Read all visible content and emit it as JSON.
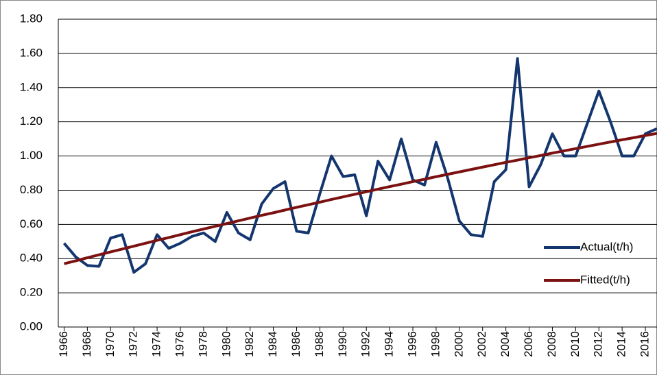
{
  "chart_data": {
    "type": "line",
    "x": [
      1966,
      1967,
      1968,
      1969,
      1970,
      1971,
      1972,
      1973,
      1974,
      1975,
      1976,
      1977,
      1978,
      1979,
      1980,
      1981,
      1982,
      1983,
      1984,
      1985,
      1986,
      1987,
      1988,
      1989,
      1990,
      1991,
      1992,
      1993,
      1994,
      1995,
      1996,
      1997,
      1998,
      1999,
      2000,
      2001,
      2002,
      2003,
      2004,
      2005,
      2006,
      2007,
      2008,
      2009,
      2010,
      2011,
      2012,
      2013,
      2014,
      2015,
      2016,
      2017
    ],
    "series": [
      {
        "name": "Actual(t/h)",
        "color": "#14366e",
        "values": [
          0.49,
          0.41,
          0.36,
          0.355,
          0.52,
          0.54,
          0.32,
          0.37,
          0.54,
          0.46,
          0.49,
          0.53,
          0.55,
          0.5,
          0.67,
          0.55,
          0.51,
          0.72,
          0.81,
          0.85,
          0.56,
          0.55,
          0.78,
          1.0,
          0.88,
          0.89,
          0.65,
          0.97,
          0.86,
          1.1,
          0.86,
          0.83,
          1.08,
          0.87,
          0.62,
          0.54,
          0.53,
          0.85,
          0.92,
          1.57,
          0.82,
          0.95,
          1.13,
          1.0,
          1.0,
          1.19,
          1.38,
          1.2,
          1.0,
          1.0,
          1.13,
          1.16
        ]
      },
      {
        "name": "Fitted(t/h)",
        "color": "#7b1111",
        "values": [
          0.37,
          0.387,
          0.405,
          0.422,
          0.439,
          0.456,
          0.473,
          0.49,
          0.507,
          0.523,
          0.54,
          0.557,
          0.573,
          0.589,
          0.605,
          0.621,
          0.637,
          0.653,
          0.668,
          0.684,
          0.7,
          0.715,
          0.73,
          0.746,
          0.761,
          0.776,
          0.791,
          0.806,
          0.821,
          0.835,
          0.85,
          0.864,
          0.879,
          0.893,
          0.907,
          0.921,
          0.935,
          0.949,
          0.963,
          0.976,
          0.99,
          1.003,
          1.017,
          1.03,
          1.043,
          1.056,
          1.069,
          1.082,
          1.095,
          1.107,
          1.12,
          1.132
        ]
      }
    ],
    "xlim": [
      1965.5,
      2017
    ],
    "xticks": [
      1966,
      1968,
      1970,
      1972,
      1974,
      1976,
      1978,
      1980,
      1982,
      1984,
      1986,
      1988,
      1990,
      1992,
      1994,
      1996,
      1998,
      2000,
      2002,
      2004,
      2006,
      2008,
      2010,
      2012,
      2014,
      2016
    ],
    "ylim": [
      0,
      1.8
    ],
    "yticks": [
      {
        "value": 0,
        "label": "0.00"
      },
      {
        "value": 0.2,
        "label": "0.20"
      },
      {
        "value": 0.4,
        "label": "0.40"
      },
      {
        "value": 0.6,
        "label": "0.60"
      },
      {
        "value": 0.8,
        "label": "0.80"
      },
      {
        "value": 1.0,
        "label": "1.00"
      },
      {
        "value": 1.2,
        "label": "1.20"
      },
      {
        "value": 1.4,
        "label": "1.40"
      },
      {
        "value": 1.6,
        "label": "1.60"
      },
      {
        "value": 1.8,
        "label": "1.80"
      }
    ],
    "grid": true,
    "legend": "right"
  }
}
